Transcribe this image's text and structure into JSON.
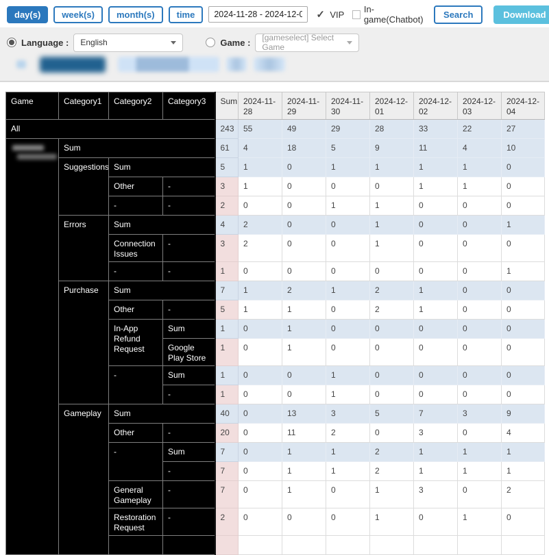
{
  "toolbar": {
    "range_buttons": [
      {
        "label": "day(s)",
        "active": true
      },
      {
        "label": "week(s)",
        "active": false
      },
      {
        "label": "month(s)",
        "active": false
      },
      {
        "label": "time",
        "active": false
      }
    ],
    "date_range": "2024-11-28 - 2024-12-04",
    "vip": {
      "label": "VIP",
      "checked": true
    },
    "ingame": {
      "label": "In-game(Chatbot)",
      "checked": false
    },
    "search_label": "Search",
    "download_label": "Download"
  },
  "filters": {
    "language": {
      "label": "Language :",
      "value": "English",
      "selected": true
    },
    "game": {
      "label": "Game :",
      "value": "[gameselect] Select Game",
      "selected": false
    }
  },
  "colors": {
    "accent_blue": "#2b78bd",
    "download_cyan": "#5bc0de",
    "total_row_blue": "#dce6f1",
    "detail_sum_pink": "#f2dede",
    "header_gray": "#eeeeee",
    "category_black": "#000000"
  },
  "table": {
    "columns": [
      77,
      73,
      79,
      76,
      34,
      64,
      64,
      64,
      64,
      64,
      64,
      63
    ],
    "header": [
      {
        "t": "Game",
        "c": "cat-h"
      },
      {
        "t": "Category1",
        "c": "cat-h"
      },
      {
        "t": "Category2",
        "c": "cat-h"
      },
      {
        "t": "Category3",
        "c": "cat-h"
      },
      {
        "t": "Sum",
        "c": "hdr sumcol"
      },
      {
        "t": "2024-11-28",
        "c": "hdr"
      },
      {
        "t": "2024-11-29",
        "c": "hdr"
      },
      {
        "t": "2024-11-30",
        "c": "hdr"
      },
      {
        "t": "2024-12-01",
        "c": "hdr"
      },
      {
        "t": "2024-12-02",
        "c": "hdr"
      },
      {
        "t": "2024-12-03",
        "c": "hdr"
      },
      {
        "t": "2024-12-04",
        "c": "hdr"
      }
    ],
    "rows": [
      {
        "cells": [
          {
            "t": "All",
            "c": "cat",
            "cs": 4
          },
          {
            "t": "243",
            "c": "sum-b sumcol"
          },
          {
            "t": "55",
            "c": "val-b"
          },
          {
            "t": "49",
            "c": "val-b"
          },
          {
            "t": "29",
            "c": "val-b"
          },
          {
            "t": "28",
            "c": "val-b"
          },
          {
            "t": "33",
            "c": "val-b"
          },
          {
            "t": "22",
            "c": "val-b"
          },
          {
            "t": "27",
            "c": "val-b"
          }
        ]
      },
      {
        "cells": [
          {
            "t": "",
            "c": "cat game-redacted",
            "rs": 20
          },
          {
            "t": "Sum",
            "c": "cat",
            "cs": 3
          },
          {
            "t": "61",
            "c": "sum-b sumcol"
          },
          {
            "t": "4",
            "c": "val-b"
          },
          {
            "t": "18",
            "c": "val-b"
          },
          {
            "t": "5",
            "c": "val-b"
          },
          {
            "t": "9",
            "c": "val-b"
          },
          {
            "t": "11",
            "c": "val-b"
          },
          {
            "t": "4",
            "c": "val-b"
          },
          {
            "t": "10",
            "c": "val-b"
          }
        ]
      },
      {
        "cells": [
          {
            "t": "Suggestions",
            "c": "cat",
            "rs": 3
          },
          {
            "t": "Sum",
            "c": "cat",
            "cs": 2
          },
          {
            "t": "5",
            "c": "sum-b sumcol"
          },
          {
            "t": "1",
            "c": "val-b"
          },
          {
            "t": "0",
            "c": "val-b"
          },
          {
            "t": "1",
            "c": "val-b"
          },
          {
            "t": "1",
            "c": "val-b"
          },
          {
            "t": "1",
            "c": "val-b"
          },
          {
            "t": "1",
            "c": "val-b"
          },
          {
            "t": "0",
            "c": "val-b"
          }
        ]
      },
      {
        "cells": [
          {
            "t": "Other",
            "c": "cat"
          },
          {
            "t": "-",
            "c": "cat"
          },
          {
            "t": "3",
            "c": "sum-p sumcol"
          },
          {
            "t": "1",
            "c": "val-w"
          },
          {
            "t": "0",
            "c": "val-w"
          },
          {
            "t": "0",
            "c": "val-w"
          },
          {
            "t": "0",
            "c": "val-w"
          },
          {
            "t": "1",
            "c": "val-w"
          },
          {
            "t": "1",
            "c": "val-w"
          },
          {
            "t": "0",
            "c": "val-w"
          }
        ]
      },
      {
        "cells": [
          {
            "t": "-",
            "c": "cat"
          },
          {
            "t": "-",
            "c": "cat"
          },
          {
            "t": "2",
            "c": "sum-p sumcol"
          },
          {
            "t": "0",
            "c": "val-w"
          },
          {
            "t": "0",
            "c": "val-w"
          },
          {
            "t": "1",
            "c": "val-w"
          },
          {
            "t": "1",
            "c": "val-w"
          },
          {
            "t": "0",
            "c": "val-w"
          },
          {
            "t": "0",
            "c": "val-w"
          },
          {
            "t": "0",
            "c": "val-w"
          }
        ]
      },
      {
        "cells": [
          {
            "t": "Errors",
            "c": "cat",
            "rs": 3
          },
          {
            "t": "Sum",
            "c": "cat",
            "cs": 2
          },
          {
            "t": "4",
            "c": "sum-b sumcol"
          },
          {
            "t": "2",
            "c": "val-b"
          },
          {
            "t": "0",
            "c": "val-b"
          },
          {
            "t": "0",
            "c": "val-b"
          },
          {
            "t": "1",
            "c": "val-b"
          },
          {
            "t": "0",
            "c": "val-b"
          },
          {
            "t": "0",
            "c": "val-b"
          },
          {
            "t": "1",
            "c": "val-b"
          }
        ]
      },
      {
        "tall": true,
        "cells": [
          {
            "t": "Connection Issues",
            "c": "cat"
          },
          {
            "t": "-",
            "c": "cat"
          },
          {
            "t": "3",
            "c": "sum-p sumcol"
          },
          {
            "t": "2",
            "c": "val-w"
          },
          {
            "t": "0",
            "c": "val-w"
          },
          {
            "t": "0",
            "c": "val-w"
          },
          {
            "t": "1",
            "c": "val-w"
          },
          {
            "t": "0",
            "c": "val-w"
          },
          {
            "t": "0",
            "c": "val-w"
          },
          {
            "t": "0",
            "c": "val-w"
          }
        ]
      },
      {
        "cells": [
          {
            "t": "-",
            "c": "cat"
          },
          {
            "t": "-",
            "c": "cat"
          },
          {
            "t": "1",
            "c": "sum-p sumcol"
          },
          {
            "t": "0",
            "c": "val-w"
          },
          {
            "t": "0",
            "c": "val-w"
          },
          {
            "t": "0",
            "c": "val-w"
          },
          {
            "t": "0",
            "c": "val-w"
          },
          {
            "t": "0",
            "c": "val-w"
          },
          {
            "t": "0",
            "c": "val-w"
          },
          {
            "t": "1",
            "c": "val-w"
          }
        ]
      },
      {
        "cells": [
          {
            "t": "Purchase",
            "c": "cat",
            "rs": 6
          },
          {
            "t": "Sum",
            "c": "cat",
            "cs": 2
          },
          {
            "t": "7",
            "c": "sum-b sumcol"
          },
          {
            "t": "1",
            "c": "val-b"
          },
          {
            "t": "2",
            "c": "val-b"
          },
          {
            "t": "1",
            "c": "val-b"
          },
          {
            "t": "2",
            "c": "val-b"
          },
          {
            "t": "1",
            "c": "val-b"
          },
          {
            "t": "0",
            "c": "val-b"
          },
          {
            "t": "0",
            "c": "val-b"
          }
        ]
      },
      {
        "cells": [
          {
            "t": "Other",
            "c": "cat"
          },
          {
            "t": "-",
            "c": "cat"
          },
          {
            "t": "5",
            "c": "sum-p sumcol"
          },
          {
            "t": "1",
            "c": "val-w"
          },
          {
            "t": "1",
            "c": "val-w"
          },
          {
            "t": "0",
            "c": "val-w"
          },
          {
            "t": "2",
            "c": "val-w"
          },
          {
            "t": "1",
            "c": "val-w"
          },
          {
            "t": "0",
            "c": "val-w"
          },
          {
            "t": "0",
            "c": "val-w"
          }
        ]
      },
      {
        "cells": [
          {
            "t": "In-App Refund Request",
            "c": "cat",
            "rs": 2
          },
          {
            "t": "Sum",
            "c": "cat"
          },
          {
            "t": "1",
            "c": "sum-b sumcol"
          },
          {
            "t": "0",
            "c": "val-b"
          },
          {
            "t": "1",
            "c": "val-b"
          },
          {
            "t": "0",
            "c": "val-b"
          },
          {
            "t": "0",
            "c": "val-b"
          },
          {
            "t": "0",
            "c": "val-b"
          },
          {
            "t": "0",
            "c": "val-b"
          },
          {
            "t": "0",
            "c": "val-b"
          }
        ]
      },
      {
        "tall": true,
        "cells": [
          {
            "t": "Google Play Store",
            "c": "cat"
          },
          {
            "t": "1",
            "c": "sum-p sumcol"
          },
          {
            "t": "0",
            "c": "val-w"
          },
          {
            "t": "1",
            "c": "val-w"
          },
          {
            "t": "0",
            "c": "val-w"
          },
          {
            "t": "0",
            "c": "val-w"
          },
          {
            "t": "0",
            "c": "val-w"
          },
          {
            "t": "0",
            "c": "val-w"
          },
          {
            "t": "0",
            "c": "val-w"
          }
        ]
      },
      {
        "cells": [
          {
            "t": "-",
            "c": "cat",
            "rs": 2
          },
          {
            "t": "Sum",
            "c": "cat"
          },
          {
            "t": "1",
            "c": "sum-b sumcol"
          },
          {
            "t": "0",
            "c": "val-b"
          },
          {
            "t": "0",
            "c": "val-b"
          },
          {
            "t": "1",
            "c": "val-b"
          },
          {
            "t": "0",
            "c": "val-b"
          },
          {
            "t": "0",
            "c": "val-b"
          },
          {
            "t": "0",
            "c": "val-b"
          },
          {
            "t": "0",
            "c": "val-b"
          }
        ]
      },
      {
        "cells": [
          {
            "t": "-",
            "c": "cat"
          },
          {
            "t": "1",
            "c": "sum-p sumcol"
          },
          {
            "t": "0",
            "c": "val-w"
          },
          {
            "t": "0",
            "c": "val-w"
          },
          {
            "t": "1",
            "c": "val-w"
          },
          {
            "t": "0",
            "c": "val-w"
          },
          {
            "t": "0",
            "c": "val-w"
          },
          {
            "t": "0",
            "c": "val-w"
          },
          {
            "t": "0",
            "c": "val-w"
          }
        ]
      },
      {
        "cells": [
          {
            "t": "Gameplay",
            "c": "cat",
            "rs": 7
          },
          {
            "t": "Sum",
            "c": "cat",
            "cs": 2
          },
          {
            "t": "40",
            "c": "sum-b sumcol"
          },
          {
            "t": "0",
            "c": "val-b"
          },
          {
            "t": "13",
            "c": "val-b"
          },
          {
            "t": "3",
            "c": "val-b"
          },
          {
            "t": "5",
            "c": "val-b"
          },
          {
            "t": "7",
            "c": "val-b"
          },
          {
            "t": "3",
            "c": "val-b"
          },
          {
            "t": "9",
            "c": "val-b"
          }
        ]
      },
      {
        "cells": [
          {
            "t": "Other",
            "c": "cat"
          },
          {
            "t": "-",
            "c": "cat"
          },
          {
            "t": "20",
            "c": "sum-p sumcol"
          },
          {
            "t": "0",
            "c": "val-w"
          },
          {
            "t": "11",
            "c": "val-w"
          },
          {
            "t": "2",
            "c": "val-w"
          },
          {
            "t": "0",
            "c": "val-w"
          },
          {
            "t": "3",
            "c": "val-w"
          },
          {
            "t": "0",
            "c": "val-w"
          },
          {
            "t": "4",
            "c": "val-w"
          }
        ]
      },
      {
        "cells": [
          {
            "t": "-",
            "c": "cat",
            "rs": 2
          },
          {
            "t": "Sum",
            "c": "cat"
          },
          {
            "t": "7",
            "c": "sum-b sumcol"
          },
          {
            "t": "0",
            "c": "val-b"
          },
          {
            "t": "1",
            "c": "val-b"
          },
          {
            "t": "1",
            "c": "val-b"
          },
          {
            "t": "2",
            "c": "val-b"
          },
          {
            "t": "1",
            "c": "val-b"
          },
          {
            "t": "1",
            "c": "val-b"
          },
          {
            "t": "1",
            "c": "val-b"
          }
        ]
      },
      {
        "cells": [
          {
            "t": "-",
            "c": "cat"
          },
          {
            "t": "7",
            "c": "sum-p sumcol"
          },
          {
            "t": "0",
            "c": "val-w"
          },
          {
            "t": "1",
            "c": "val-w"
          },
          {
            "t": "1",
            "c": "val-w"
          },
          {
            "t": "2",
            "c": "val-w"
          },
          {
            "t": "1",
            "c": "val-w"
          },
          {
            "t": "1",
            "c": "val-w"
          },
          {
            "t": "1",
            "c": "val-w"
          }
        ]
      },
      {
        "tall": true,
        "cells": [
          {
            "t": "General Gameplay",
            "c": "cat"
          },
          {
            "t": "-",
            "c": "cat"
          },
          {
            "t": "7",
            "c": "sum-p sumcol"
          },
          {
            "t": "0",
            "c": "val-w"
          },
          {
            "t": "1",
            "c": "val-w"
          },
          {
            "t": "0",
            "c": "val-w"
          },
          {
            "t": "1",
            "c": "val-w"
          },
          {
            "t": "3",
            "c": "val-w"
          },
          {
            "t": "0",
            "c": "val-w"
          },
          {
            "t": "2",
            "c": "val-w"
          }
        ]
      },
      {
        "tall": true,
        "cells": [
          {
            "t": "Restoration Request",
            "c": "cat"
          },
          {
            "t": "-",
            "c": "cat"
          },
          {
            "t": "2",
            "c": "sum-p sumcol"
          },
          {
            "t": "0",
            "c": "val-w"
          },
          {
            "t": "0",
            "c": "val-w"
          },
          {
            "t": "0",
            "c": "val-w"
          },
          {
            "t": "1",
            "c": "val-w"
          },
          {
            "t": "0",
            "c": "val-w"
          },
          {
            "t": "1",
            "c": "val-w"
          },
          {
            "t": "0",
            "c": "val-w"
          }
        ]
      },
      {
        "cells": [
          {
            "t": "",
            "c": "cat"
          },
          {
            "t": "",
            "c": "cat"
          },
          {
            "t": "",
            "c": "sum-p sumcol"
          },
          {
            "t": "",
            "c": "val-w"
          },
          {
            "t": "",
            "c": "val-w"
          },
          {
            "t": "",
            "c": "val-w"
          },
          {
            "t": "",
            "c": "val-w"
          },
          {
            "t": "",
            "c": "val-w"
          },
          {
            "t": "",
            "c": "val-w"
          },
          {
            "t": "",
            "c": "val-w"
          }
        ]
      }
    ]
  }
}
